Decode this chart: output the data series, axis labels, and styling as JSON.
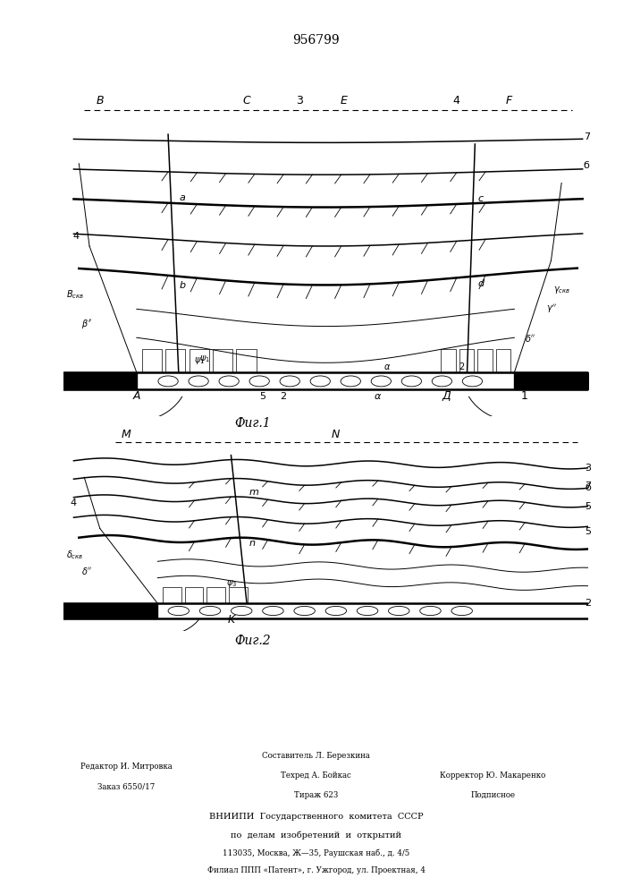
{
  "title_text": "956799",
  "fig1_caption": "Фиг.1",
  "fig2_caption": "Фиг.2",
  "bg_color": "#ffffff",
  "line_color": "#000000"
}
